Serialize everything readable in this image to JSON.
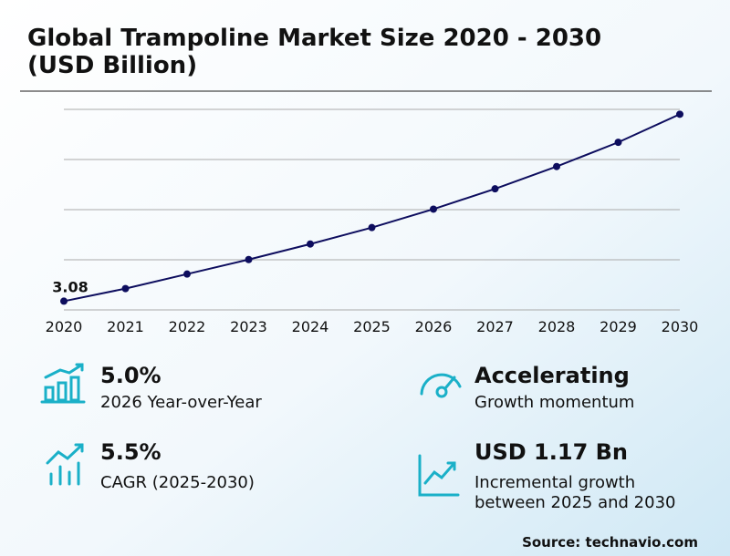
{
  "chart_data": {
    "type": "line",
    "title_lines": [
      "Global Trampoline Market Size 2020 - 2030",
      "(USD Billion)"
    ],
    "categories": [
      "2020",
      "2021",
      "2022",
      "2023",
      "2024",
      "2025",
      "2026",
      "2027",
      "2028",
      "2029",
      "2030"
    ],
    "values": [
      3.08,
      3.21,
      3.36,
      3.51,
      3.67,
      3.84,
      4.03,
      4.24,
      4.47,
      4.72,
      5.01
    ],
    "value_labels": [
      "3.08",
      null,
      null,
      null,
      null,
      null,
      null,
      null,
      null,
      null,
      null
    ],
    "color": "#0d0d5e",
    "ylim": [
      2.99,
      5.06
    ],
    "grid": true
  },
  "stats": [
    {
      "value": "5.0%",
      "label_lines": [
        "2026 Year-over-Year"
      ]
    },
    {
      "value": "Accelerating",
      "label_lines": [
        "Growth momentum"
      ]
    },
    {
      "value": "5.5%",
      "label_lines": [
        "CAGR (2025-2030)"
      ]
    },
    {
      "value": "USD 1.17 Bn",
      "label_lines": [
        "Incremental growth",
        "between 2025 and 2030"
      ]
    }
  ],
  "source": "Source: technavio.com"
}
